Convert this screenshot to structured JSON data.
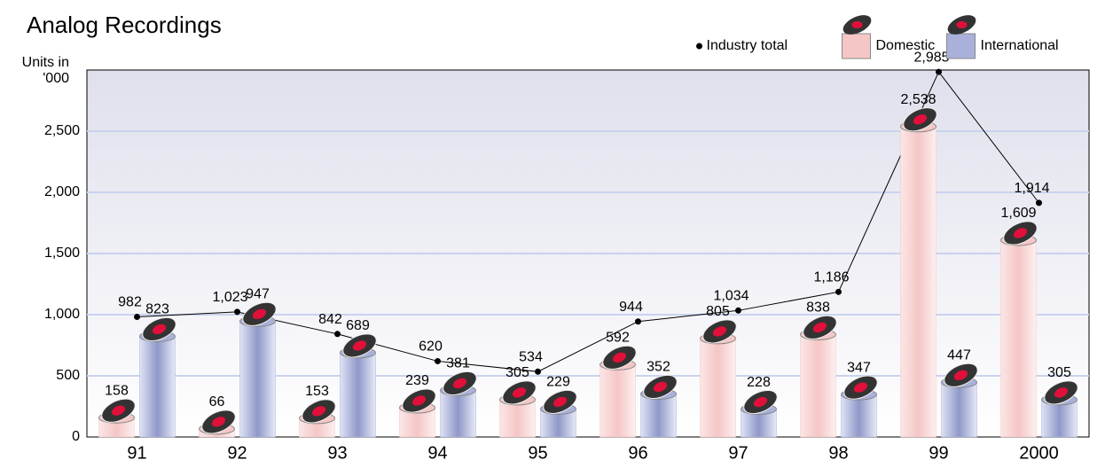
{
  "chart_data": {
    "type": "bar",
    "title": "Analog Recordings",
    "y_label": "Units in '000",
    "categories": [
      "91",
      "92",
      "93",
      "94",
      "95",
      "96",
      "97",
      "98",
      "99",
      "2000"
    ],
    "series": [
      {
        "name": "Industry total",
        "type": "line",
        "color": "#000000",
        "values": [
          982,
          1023,
          842,
          620,
          534,
          944,
          1034,
          1186,
          2985,
          1914
        ],
        "value_labels": [
          "982",
          "1,023",
          "842",
          "620",
          "534",
          "944",
          "1,034",
          "1,186",
          "2,985",
          "1,914"
        ]
      },
      {
        "name": "Domestic",
        "type": "bar",
        "color": "#f5c6c6",
        "values": [
          158,
          66,
          153,
          239,
          305,
          592,
          805,
          838,
          2538,
          1609
        ],
        "value_labels": [
          "158",
          "66",
          "153",
          "239",
          "305",
          "592",
          "805",
          "838",
          "2,538",
          "1,609"
        ]
      },
      {
        "name": "International",
        "type": "bar",
        "color": "#a9b1da",
        "values": [
          823,
          947,
          689,
          381,
          229,
          352,
          228,
          347,
          447,
          305
        ]
      }
    ],
    "ylim": [
      0,
      3000
    ],
    "yticks": [
      0,
      500,
      {
        "value": 1000,
        "label": "1,000"
      },
      {
        "value": 1500,
        "label": "1,500"
      },
      {
        "value": 2000,
        "label": "2,000"
      },
      {
        "value": 2500,
        "label": "2,500"
      }
    ],
    "grid": true,
    "legend": "top-right"
  }
}
